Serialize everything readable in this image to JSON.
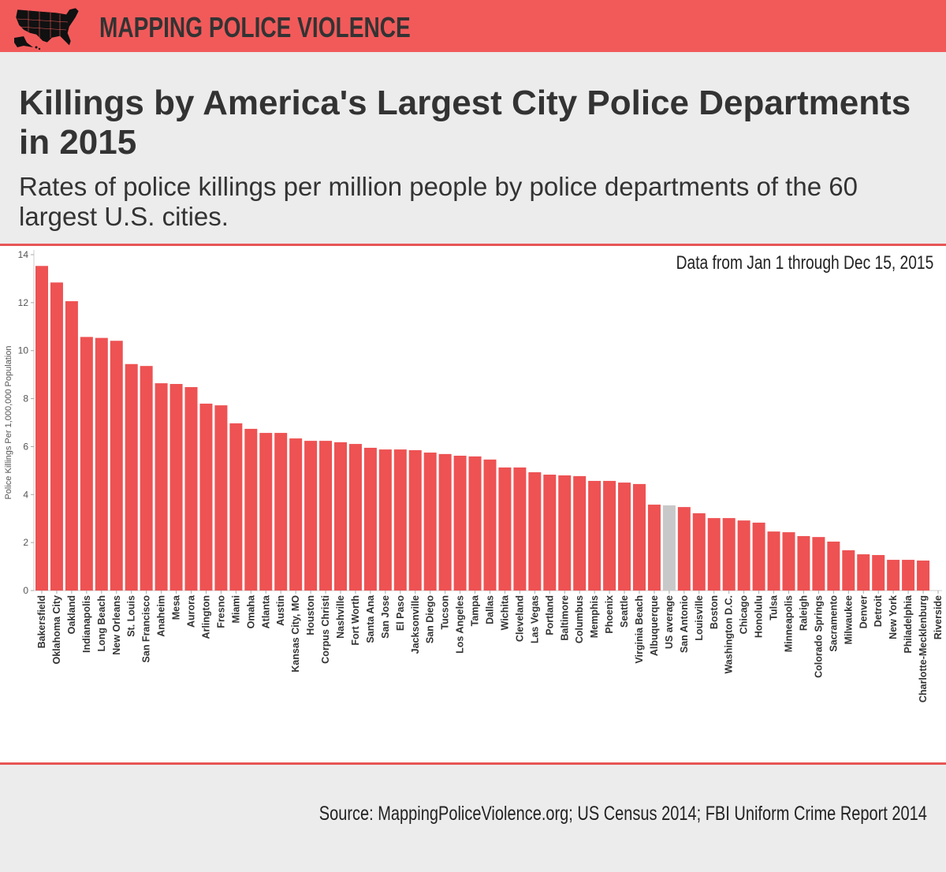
{
  "header": {
    "brand": "MAPPING POLICE VIOLENCE",
    "logo_icon": "us-map-icon",
    "brand_color": "#f25a5a"
  },
  "title": "Killings by America's Largest City Police Departments in 2015",
  "subtitle": "Rates of police killings per million people by police departments of the 60 largest U.S. cities.",
  "note": "Data from Jan 1 through Dec 15, 2015",
  "source": "Source: MappingPoliceViolence.org; US Census 2014; FBI Uniform Crime Report 2014",
  "chart_data": {
    "type": "bar",
    "title": "",
    "xlabel": "",
    "ylabel": "Police Killings Per 1,000,000 Population",
    "ylim": [
      0,
      14
    ],
    "yticks": [
      "0",
      "2",
      "4",
      "6",
      "8",
      "10",
      "12",
      "14"
    ],
    "grid": false,
    "colors": {
      "bar": "#ee5253",
      "highlight": "#c8c8c8"
    },
    "highlight_category": "US average",
    "categories": [
      "Bakersfield",
      "Oklahoma City",
      "Oakland",
      "Indianapolis",
      "Long Beach",
      "New Orleans",
      "St. Louis",
      "San Francisco",
      "Anaheim",
      "Mesa",
      "Aurora",
      "Arlington",
      "Fresno",
      "Miami",
      "Omaha",
      "Atlanta",
      "Austin",
      "Kansas City, MO",
      "Houston",
      "Corpus Christi",
      "Nashville",
      "Fort Worth",
      "Santa Ana",
      "San Jose",
      "El Paso",
      "Jacksonville",
      "San Diego",
      "Tucson",
      "Los Angeles",
      "Tampa",
      "Dallas",
      "Wichita",
      "Cleveland",
      "Las Vegas",
      "Portland",
      "Baltimore",
      "Columbus",
      "Memphis",
      "Phoenix",
      "Seattle",
      "Virginia Beach",
      "Albuquerque",
      "US average",
      "San Antonio",
      "Louisville",
      "Boston",
      "Washington D.C.",
      "Chicago",
      "Honolulu",
      "Tulsa",
      "Minneapolis",
      "Raleigh",
      "Colorado Springs",
      "Sacramento",
      "Milwaukee",
      "Denver",
      "Detroit",
      "New York",
      "Philadelphia",
      "Charlotte-Mecklenburg",
      "Riverside"
    ],
    "values": [
      13.53,
      12.84,
      12.06,
      10.57,
      10.53,
      10.41,
      9.44,
      9.36,
      8.64,
      8.61,
      8.48,
      7.79,
      7.72,
      6.97,
      6.74,
      6.57,
      6.57,
      6.34,
      6.24,
      6.24,
      6.18,
      6.11,
      5.95,
      5.88,
      5.88,
      5.85,
      5.75,
      5.69,
      5.62,
      5.59,
      5.46,
      5.13,
      5.13,
      4.93,
      4.83,
      4.8,
      4.77,
      4.57,
      4.57,
      4.5,
      4.44,
      3.58,
      3.55,
      3.48,
      3.22,
      3.02,
      3.02,
      2.92,
      2.83,
      2.46,
      2.43,
      2.27,
      2.23,
      2.04,
      1.68,
      1.51,
      1.48,
      1.28,
      1.28,
      1.25,
      0
    ]
  }
}
